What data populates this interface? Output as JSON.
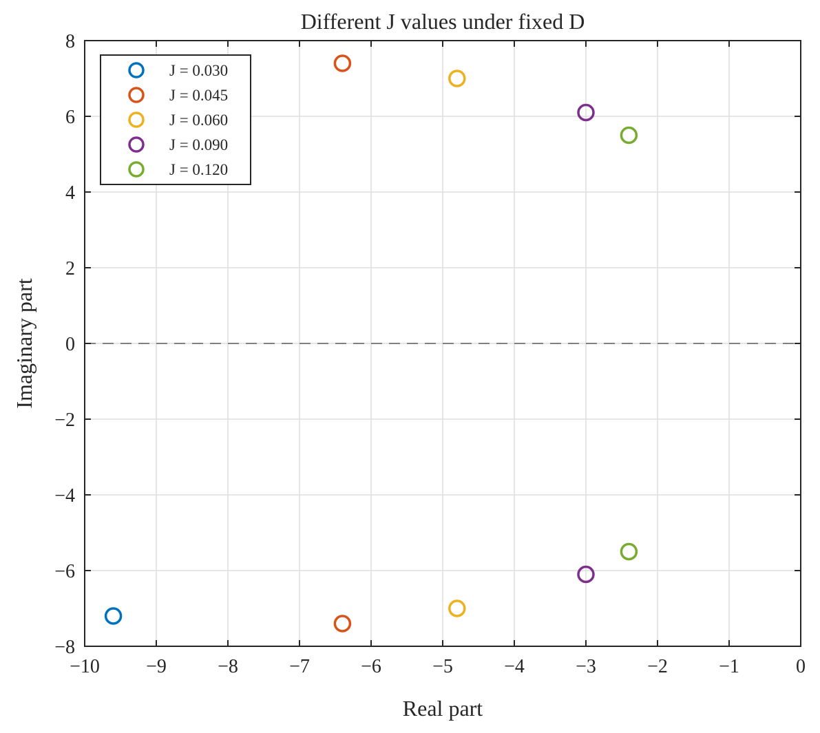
{
  "chart_data": {
    "type": "scatter",
    "title": "Different J values under fixed D",
    "xlabel": "Real part",
    "ylabel": "Imaginary part",
    "xlim": [
      -10,
      0
    ],
    "ylim": [
      -8,
      8
    ],
    "xticks": [
      -10,
      -9,
      -8,
      -7,
      -6,
      -5,
      -4,
      -3,
      -2,
      -1,
      0
    ],
    "yticks": [
      -8,
      -6,
      -4,
      -2,
      0,
      2,
      4,
      6,
      8
    ],
    "grid": true,
    "zero_line": {
      "y": 0,
      "style": "dashed"
    },
    "legend_position": "top-left",
    "marker": "open-circle",
    "series": [
      {
        "name": "J = 0.030",
        "color": "#0072BD",
        "points": [
          [
            -9.6,
            -7.2
          ]
        ]
      },
      {
        "name": "J = 0.045",
        "color": "#D95319",
        "points": [
          [
            -6.4,
            7.4
          ],
          [
            -6.4,
            -7.4
          ]
        ]
      },
      {
        "name": "J = 0.060",
        "color": "#EDB120",
        "points": [
          [
            -4.8,
            7.0
          ],
          [
            -4.8,
            -7.0
          ]
        ]
      },
      {
        "name": "J = 0.090",
        "color": "#7E2F8E",
        "points": [
          [
            -3.0,
            6.1
          ],
          [
            -3.0,
            -6.1
          ]
        ]
      },
      {
        "name": "J = 0.120",
        "color": "#77AC30",
        "points": [
          [
            -2.4,
            5.5
          ],
          [
            -2.4,
            -5.5
          ]
        ]
      }
    ]
  }
}
